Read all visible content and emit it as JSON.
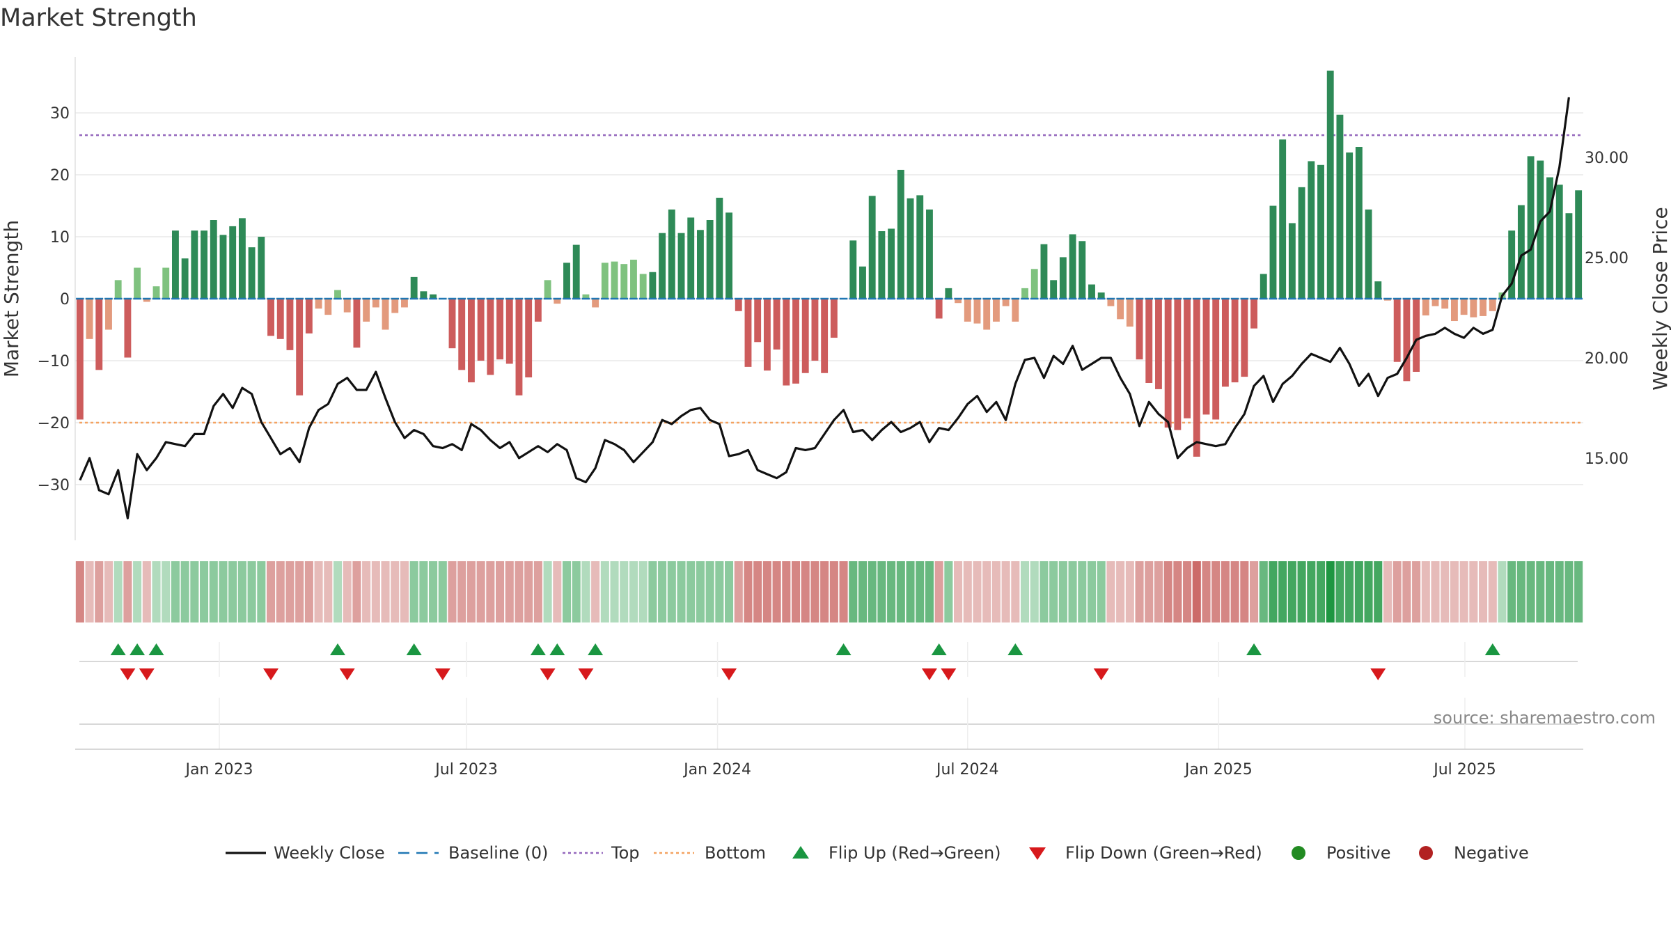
{
  "title": "Market Strength",
  "source": "source: sharemaestro.com",
  "chart_data": {
    "type": "bar",
    "title": "Market Strength",
    "ylabel": "Market Strength",
    "y2label": "Weekly Close Price",
    "ylim": [
      -39,
      39
    ],
    "y2lim": [
      10.9,
      35.0
    ],
    "yticks": [
      -30,
      -20,
      -10,
      0,
      10,
      20,
      30
    ],
    "y2ticks": [
      15.0,
      20.0,
      25.0,
      30.0
    ],
    "y2tick_labels": [
      "15.00",
      "20.00",
      "25.00",
      "30.00"
    ],
    "x_start_week": 0,
    "x_tick_weeks": [
      14.6,
      40.5,
      66.8,
      93.0,
      119.3,
      145.1
    ],
    "x_tick_labels": [
      "Jan 2023",
      "Jul 2023",
      "Jan 2024",
      "Jul 2024",
      "Jan 2025",
      "Jul 2025"
    ],
    "top_level": 26.4,
    "bottom_level": -20.0,
    "strength": [
      -19.5,
      -6.5,
      -11.5,
      -5.0,
      3.0,
      -9.5,
      5.0,
      -0.5,
      2.0,
      5.0,
      11.0,
      6.5,
      11.0,
      11.0,
      12.7,
      10.3,
      11.7,
      13.0,
      8.3,
      10.0,
      -6.0,
      -6.5,
      -8.3,
      -15.6,
      -5.6,
      -1.6,
      -2.6,
      1.4,
      -2.2,
      -7.9,
      -3.7,
      -1.4,
      -5.0,
      -2.3,
      -1.4,
      3.5,
      1.2,
      0.7,
      0.0,
      -8.0,
      -11.5,
      -13.5,
      -10.0,
      -12.3,
      -9.8,
      -10.5,
      -15.6,
      -12.7,
      -3.7,
      3.0,
      -0.8,
      5.8,
      8.7,
      0.7,
      -1.4,
      5.8,
      6.0,
      5.6,
      6.3,
      4.0,
      4.3,
      10.6,
      14.4,
      10.6,
      13.1,
      11.1,
      12.7,
      16.3,
      13.9,
      -2.0,
      -11.0,
      -7.0,
      -11.6,
      -8.2,
      -14.0,
      -13.7,
      -12.0,
      -10.0,
      -12.0,
      -6.3,
      0.0,
      9.4,
      5.2,
      16.6,
      10.9,
      11.3,
      20.8,
      16.2,
      16.7,
      14.4,
      -3.2,
      1.7,
      -0.7,
      -3.7,
      -4.0,
      -5.0,
      -3.7,
      -1.2,
      -3.7,
      1.7,
      4.8,
      8.8,
      3.0,
      6.7,
      10.4,
      9.3,
      2.3,
      1.0,
      -1.2,
      -3.3,
      -4.5,
      -9.8,
      -13.6,
      -14.6,
      -20.8,
      -21.2,
      -19.3,
      -25.5,
      -18.7,
      -19.5,
      -14.2,
      -13.5,
      -12.6,
      -4.8,
      4.0,
      15.0,
      25.7,
      12.2,
      18.0,
      22.2,
      21.6,
      36.8,
      29.7,
      23.6,
      24.5,
      14.4,
      2.8,
      -0.3,
      -10.2,
      -13.3,
      -11.8,
      -2.7,
      -1.2,
      -1.6,
      -3.6,
      -2.6,
      -3.0,
      -2.8,
      -2.0,
      1.0,
      11.0,
      15.1,
      23.0,
      22.3,
      19.6,
      18.4,
      13.8,
      17.5
    ],
    "weekly_close": [
      13.9,
      15.0,
      13.4,
      13.2,
      14.4,
      12.0,
      15.2,
      14.4,
      15.0,
      15.8,
      15.7,
      15.6,
      16.2,
      16.2,
      17.6,
      18.2,
      17.5,
      18.5,
      18.2,
      16.8,
      16.0,
      15.2,
      15.5,
      14.8,
      16.5,
      17.4,
      17.7,
      18.7,
      19.0,
      18.4,
      18.4,
      19.3,
      18.0,
      16.8,
      16.0,
      16.4,
      16.2,
      15.6,
      15.5,
      15.7,
      15.4,
      16.7,
      16.4,
      15.9,
      15.5,
      15.8,
      15.0,
      15.3,
      15.6,
      15.3,
      15.7,
      15.4,
      14.0,
      13.8,
      14.5,
      15.9,
      15.7,
      15.4,
      14.8,
      15.3,
      15.8,
      16.9,
      16.7,
      17.1,
      17.4,
      17.5,
      16.9,
      16.7,
      15.1,
      15.2,
      15.4,
      14.4,
      14.2,
      14.0,
      14.3,
      15.5,
      15.4,
      15.5,
      16.2,
      16.9,
      17.4,
      16.3,
      16.4,
      15.9,
      16.4,
      16.8,
      16.3,
      16.5,
      16.8,
      15.8,
      16.5,
      16.4,
      17.0,
      17.7,
      18.1,
      17.3,
      17.8,
      16.9,
      18.7,
      19.9,
      20.0,
      19.0,
      20.1,
      19.7,
      20.6,
      19.4,
      19.7,
      20.0,
      20.0,
      19.0,
      18.2,
      16.6,
      17.8,
      17.2,
      16.8,
      15.0,
      15.5,
      15.8,
      15.7,
      15.6,
      15.7,
      16.5,
      17.2,
      18.6,
      19.1,
      17.8,
      18.7,
      19.1,
      19.7,
      20.2,
      20.0,
      19.8,
      20.5,
      19.7,
      18.6,
      19.2,
      18.1,
      19.0,
      19.2,
      20.0,
      20.9,
      21.1,
      21.2,
      21.5,
      21.2,
      21.0,
      21.5,
      21.2,
      21.4,
      23.1,
      23.7,
      25.1,
      25.4,
      26.8,
      27.3,
      29.5,
      33.0
    ],
    "regime": [
      -3,
      -1,
      -2,
      -1,
      1,
      -2,
      1,
      -1,
      1,
      1,
      2,
      2,
      2,
      2,
      2,
      2,
      2,
      2,
      2,
      2,
      -2,
      -2,
      -2,
      -2,
      -2,
      -1,
      -1,
      1,
      -1,
      -2,
      -1,
      -1,
      -1,
      -1,
      -1,
      2,
      2,
      2,
      2,
      -2,
      -2,
      -2,
      -2,
      -2,
      -2,
      -2,
      -2,
      -2,
      -2,
      1,
      -1,
      2,
      2,
      1,
      -1,
      1,
      1,
      1,
      1,
      1,
      2,
      2,
      2,
      2,
      2,
      2,
      2,
      2,
      2,
      -2,
      -3,
      -3,
      -3,
      -3,
      -3,
      -3,
      -3,
      -3,
      -3,
      -3,
      -3,
      3,
      3,
      3,
      3,
      3,
      3,
      3,
      3,
      3,
      -2,
      2,
      -1,
      -1,
      -1,
      -1,
      -1,
      -1,
      -1,
      1,
      1,
      2,
      2,
      2,
      2,
      2,
      2,
      2,
      -1,
      -1,
      -1,
      -2,
      -2,
      -2,
      -3,
      -3,
      -3,
      -4,
      -3,
      -3,
      -3,
      -3,
      -3,
      -2,
      3,
      4,
      4,
      4,
      4,
      4,
      4,
      5,
      4,
      4,
      4,
      4,
      4,
      -1,
      -2,
      -2,
      -2,
      -1,
      -1,
      -1,
      -1,
      -1,
      -1,
      -1,
      -1,
      1,
      3,
      3,
      3,
      3,
      3,
      3,
      3,
      3
    ],
    "flip_up_weeks": [
      4,
      6,
      8,
      27,
      35,
      48,
      50,
      54,
      80,
      90,
      98,
      123,
      148
    ],
    "flip_down_weeks": [
      5,
      7,
      20,
      28,
      38,
      49,
      53,
      68,
      89,
      91,
      107,
      136
    ],
    "legend": [
      "Weekly Close",
      "Baseline (0)",
      "Top",
      "Bottom",
      "Flip Up (Red→Green)",
      "Flip Down (Green→Red)",
      "Positive",
      "Negative"
    ],
    "colors": {
      "strong_green": "#2e8a57",
      "light_green": "#7fc27f",
      "strong_red": "#cd5c5c",
      "light_red": "#e39a7d",
      "line": "#111111",
      "baseline": "#1f77b4",
      "top": "#9467bd",
      "bottom": "#f4a261",
      "flip_up": "#1a9641",
      "flip_down": "#d7191c",
      "positive": "#228b22",
      "negative": "#b22222"
    }
  }
}
